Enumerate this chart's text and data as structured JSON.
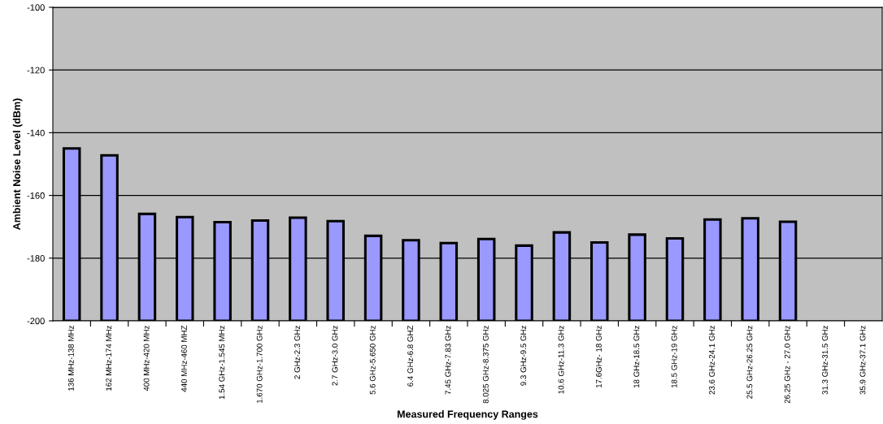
{
  "chart_data": {
    "type": "bar",
    "xlabel": "Measured Frequency Ranges",
    "ylabel": "Ambient Noise Level (dBm)",
    "categories": [
      "136 MHz-138 MHz",
      "162 MHz-174 MHz",
      "400 MHz-420 MHz",
      "440 MHz-460 MHZ",
      "1.54 GHz-1.545 MHz",
      "1.670 GHz-1.700 GHz",
      "2 GHz-2.3 GHz",
      "2.7 GHz-3.0 GHz",
      "5.6 GHz-5.650 GHz",
      "6.4 GHz-6.8 GHZ",
      "7.45 GHz-7.83 GHz",
      "8.025 GHz-8.375 GHz",
      "9.3 GHz-9.5 GHz",
      "10.6 GHz-11.3 GHz",
      "17.6GHz- 18 GHz",
      "18 GHz-18.5 GHz",
      "18.5 GHz-19 GHz",
      "23.6 GHz-24.1 GHz",
      "25.5 GHz-26.25 GHz",
      "26.25 GHz - 27.0 GHz",
      "31.3 GHz-31.5 GHz",
      "35.9 GHz-37.1 GHz"
    ],
    "values": [
      55.0,
      52.8,
      34.1,
      33.1,
      31.5,
      32.0,
      32.9,
      31.8,
      27.1,
      25.7,
      24.8,
      26.1,
      24.0,
      28.2,
      25.0,
      27.5,
      26.3,
      32.3,
      32.7,
      31.6,
      null,
      null
    ],
    "base": [
      -200,
      -200,
      -200,
      -200,
      -200,
      -200,
      -200,
      -200,
      -200,
      -200,
      -200,
      -200,
      -200,
      -200,
      -200,
      -200,
      -200,
      -200,
      -200,
      -200,
      null,
      null
    ],
    "color": "#9999ff",
    "ylim": [
      -200,
      -100
    ],
    "yticks": [
      -200,
      -180,
      -160,
      -140,
      -120,
      -100
    ],
    "grid": "y"
  }
}
